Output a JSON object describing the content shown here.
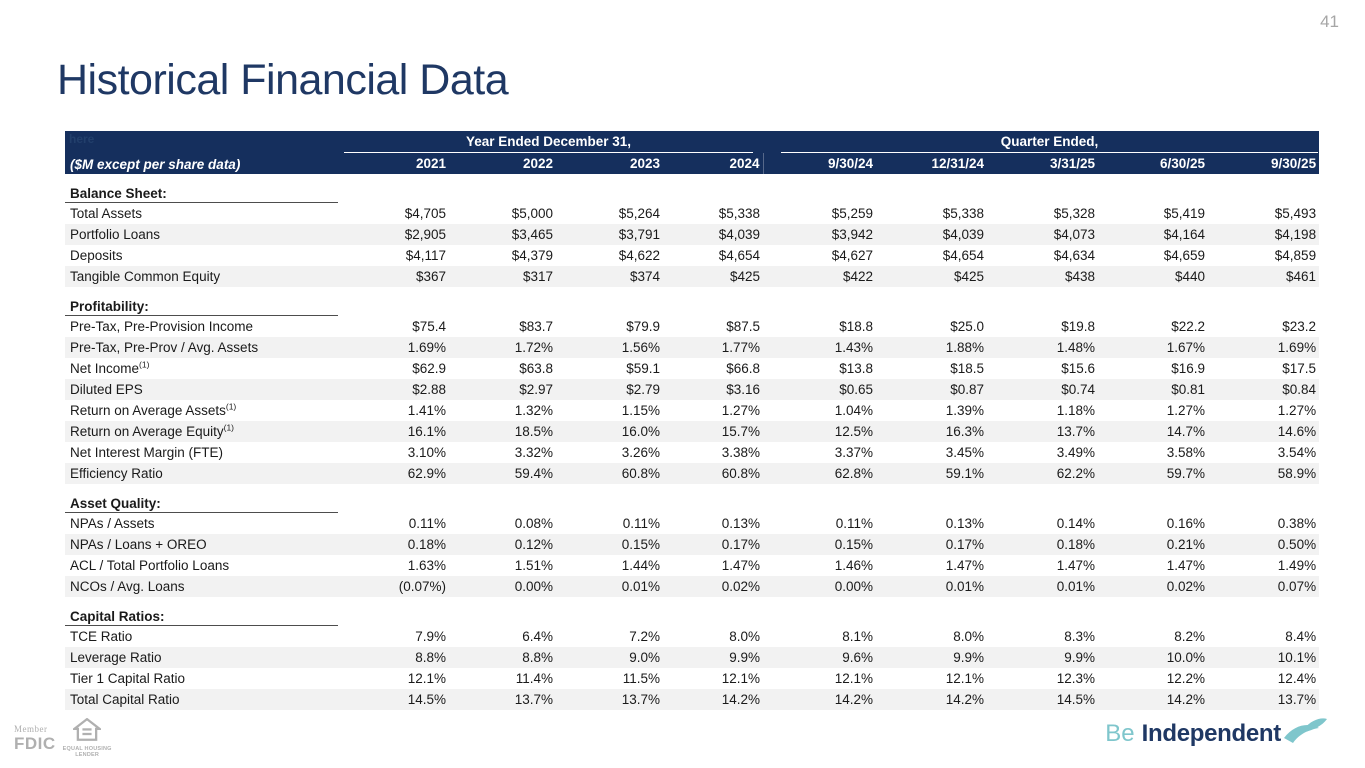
{
  "page_number": "41",
  "title": "Historical Financial Data",
  "table": {
    "placeholder_text": "here",
    "row_label_header": "($M except per share data)",
    "year_group": {
      "label": "Year Ended December 31,",
      "columns": [
        "2021",
        "2022",
        "2023",
        "2024"
      ]
    },
    "quarter_group": {
      "label": "Quarter Ended,",
      "columns": [
        "9/30/24",
        "12/31/24",
        "3/31/25",
        "6/30/25",
        "9/30/25"
      ]
    },
    "sections": [
      {
        "label": "Balance Sheet:",
        "rows": [
          {
            "label": "Total Assets",
            "values": [
              "$4,705",
              "$5,000",
              "$5,264",
              "$5,338",
              "$5,259",
              "$5,338",
              "$5,328",
              "$5,419",
              "$5,493"
            ]
          },
          {
            "label": "Portfolio Loans",
            "values": [
              "$2,905",
              "$3,465",
              "$3,791",
              "$4,039",
              "$3,942",
              "$4,039",
              "$4,073",
              "$4,164",
              "$4,198"
            ]
          },
          {
            "label": "Deposits",
            "values": [
              "$4,117",
              "$4,379",
              "$4,622",
              "$4,654",
              "$4,627",
              "$4,654",
              "$4,634",
              "$4,659",
              "$4,859"
            ]
          },
          {
            "label": "Tangible Common Equity",
            "values": [
              "$367",
              "$317",
              "$374",
              "$425",
              "$422",
              "$425",
              "$438",
              "$440",
              "$461"
            ]
          }
        ]
      },
      {
        "label": "Profitability:",
        "rows": [
          {
            "label": "Pre-Tax, Pre-Provision Income",
            "values": [
              "$75.4",
              "$83.7",
              "$79.9",
              "$87.5",
              "$18.8",
              "$25.0",
              "$19.8",
              "$22.2",
              "$23.2"
            ]
          },
          {
            "label": "Pre-Tax, Pre-Prov / Avg. Assets",
            "values": [
              "1.69%",
              "1.72%",
              "1.56%",
              "1.77%",
              "1.43%",
              "1.88%",
              "1.48%",
              "1.67%",
              "1.69%"
            ]
          },
          {
            "label": "Net Income",
            "sup": "(1)",
            "values": [
              "$62.9",
              "$63.8",
              "$59.1",
              "$66.8",
              "$13.8",
              "$18.5",
              "$15.6",
              "$16.9",
              "$17.5"
            ]
          },
          {
            "label": "Diluted EPS",
            "values": [
              "$2.88",
              "$2.97",
              "$2.79",
              "$3.16",
              "$0.65",
              "$0.87",
              "$0.74",
              "$0.81",
              "$0.84"
            ]
          },
          {
            "label": "Return on Average Assets",
            "sup": "(1)",
            "values": [
              "1.41%",
              "1.32%",
              "1.15%",
              "1.27%",
              "1.04%",
              "1.39%",
              "1.18%",
              "1.27%",
              "1.27%"
            ]
          },
          {
            "label": "Return on Average Equity",
            "sup": "(1)",
            "values": [
              "16.1%",
              "18.5%",
              "16.0%",
              "15.7%",
              "12.5%",
              "16.3%",
              "13.7%",
              "14.7%",
              "14.6%"
            ]
          },
          {
            "label": "Net Interest Margin (FTE)",
            "values": [
              "3.10%",
              "3.32%",
              "3.26%",
              "3.38%",
              "3.37%",
              "3.45%",
              "3.49%",
              "3.58%",
              "3.54%"
            ]
          },
          {
            "label": "Efficiency Ratio",
            "values": [
              "62.9%",
              "59.4%",
              "60.8%",
              "60.8%",
              "62.8%",
              "59.1%",
              "62.2%",
              "59.7%",
              "58.9%"
            ]
          }
        ]
      },
      {
        "label": "Asset Quality:",
        "rows": [
          {
            "label": "NPAs / Assets",
            "values": [
              "0.11%",
              "0.08%",
              "0.11%",
              "0.13%",
              "0.11%",
              "0.13%",
              "0.14%",
              "0.16%",
              "0.38%"
            ]
          },
          {
            "label": "NPAs / Loans + OREO",
            "values": [
              "0.18%",
              "0.12%",
              "0.15%",
              "0.17%",
              "0.15%",
              "0.17%",
              "0.18%",
              "0.21%",
              "0.50%"
            ]
          },
          {
            "label": "ACL / Total Portfolio Loans",
            "values": [
              "1.63%",
              "1.51%",
              "1.44%",
              "1.47%",
              "1.46%",
              "1.47%",
              "1.47%",
              "1.47%",
              "1.49%"
            ]
          },
          {
            "label": "NCOs / Avg. Loans",
            "values": [
              "(0.07%)",
              "0.00%",
              "0.01%",
              "0.02%",
              "0.00%",
              "0.01%",
              "0.01%",
              "0.02%",
              "0.07%"
            ]
          }
        ]
      },
      {
        "label": "Capital Ratios:",
        "rows": [
          {
            "label": "TCE Ratio",
            "values": [
              "7.9%",
              "6.4%",
              "7.2%",
              "8.0%",
              "8.1%",
              "8.0%",
              "8.3%",
              "8.2%",
              "8.4%"
            ]
          },
          {
            "label": "Leverage Ratio",
            "values": [
              "8.8%",
              "8.8%",
              "9.0%",
              "9.9%",
              "9.6%",
              "9.9%",
              "9.9%",
              "10.0%",
              "10.1%"
            ]
          },
          {
            "label": "Tier 1 Capital Ratio",
            "values": [
              "12.1%",
              "11.4%",
              "11.5%",
              "12.1%",
              "12.1%",
              "12.1%",
              "12.3%",
              "12.2%",
              "12.4%"
            ]
          },
          {
            "label": "Total Capital Ratio",
            "values": [
              "14.5%",
              "13.7%",
              "13.7%",
              "14.2%",
              "14.2%",
              "14.2%",
              "14.5%",
              "14.2%",
              "13.7%"
            ]
          }
        ]
      }
    ]
  },
  "footer": {
    "member_label": "Member",
    "fdic_label": "FDIC",
    "ehl_line1": "EQUAL HOUSING",
    "ehl_line2": "LENDER",
    "logo_be": "Be",
    "logo_independent": "Independent"
  },
  "colors": {
    "header_navy": "#152f5d",
    "title_navy": "#1f3864",
    "stripe_gray": "#f2f2f2",
    "brand_teal": "#7fc6cc",
    "footer_gray": "#b0b0b0"
  }
}
